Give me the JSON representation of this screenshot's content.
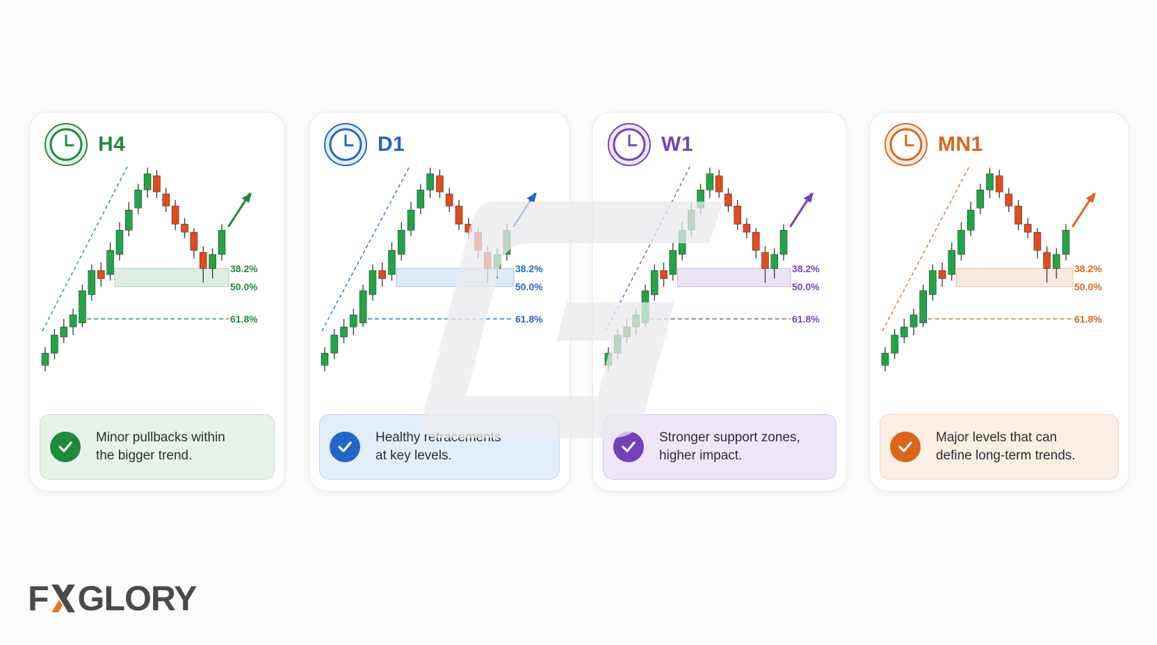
{
  "cards": [
    {
      "timeframe": "H4",
      "color": "#1f8a3b",
      "light": "#e7f3e9",
      "icon": "clock-icon",
      "description_line1": "Minor pullbacks within",
      "description_line2": "the bigger trend.",
      "fib_levels": [
        "38.2%",
        "50.0%",
        "61.8%"
      ]
    },
    {
      "timeframe": "D1",
      "color": "#1f66c7",
      "light": "#e3edfa",
      "icon": "clock-icon",
      "description_line1": "Healthy retracements",
      "description_line2": "at key levels.",
      "fib_levels": [
        "38.2%",
        "50.0%",
        "61.8%"
      ]
    },
    {
      "timeframe": "W1",
      "color": "#7442b8",
      "light": "#eee6f8",
      "icon": "clock-icon",
      "description_line1": "Stronger support zones,",
      "description_line2": "higher impact.",
      "fib_levels": [
        "38.2%",
        "50.0%",
        "61.8%"
      ]
    },
    {
      "timeframe": "MN1",
      "color": "#d9661a",
      "light": "#fbeee2",
      "icon": "clock-icon",
      "description_line1": "Major levels that can",
      "description_line2": "define long-term trends.",
      "fib_levels": [
        "38.2%",
        "50.0%",
        "61.8%"
      ]
    }
  ],
  "candle_colors": {
    "bull": "#22a447",
    "bear": "#e04b1f"
  },
  "logo": {
    "part1": "FX",
    "part2": "GLORY",
    "accent": "#e8741e"
  }
}
